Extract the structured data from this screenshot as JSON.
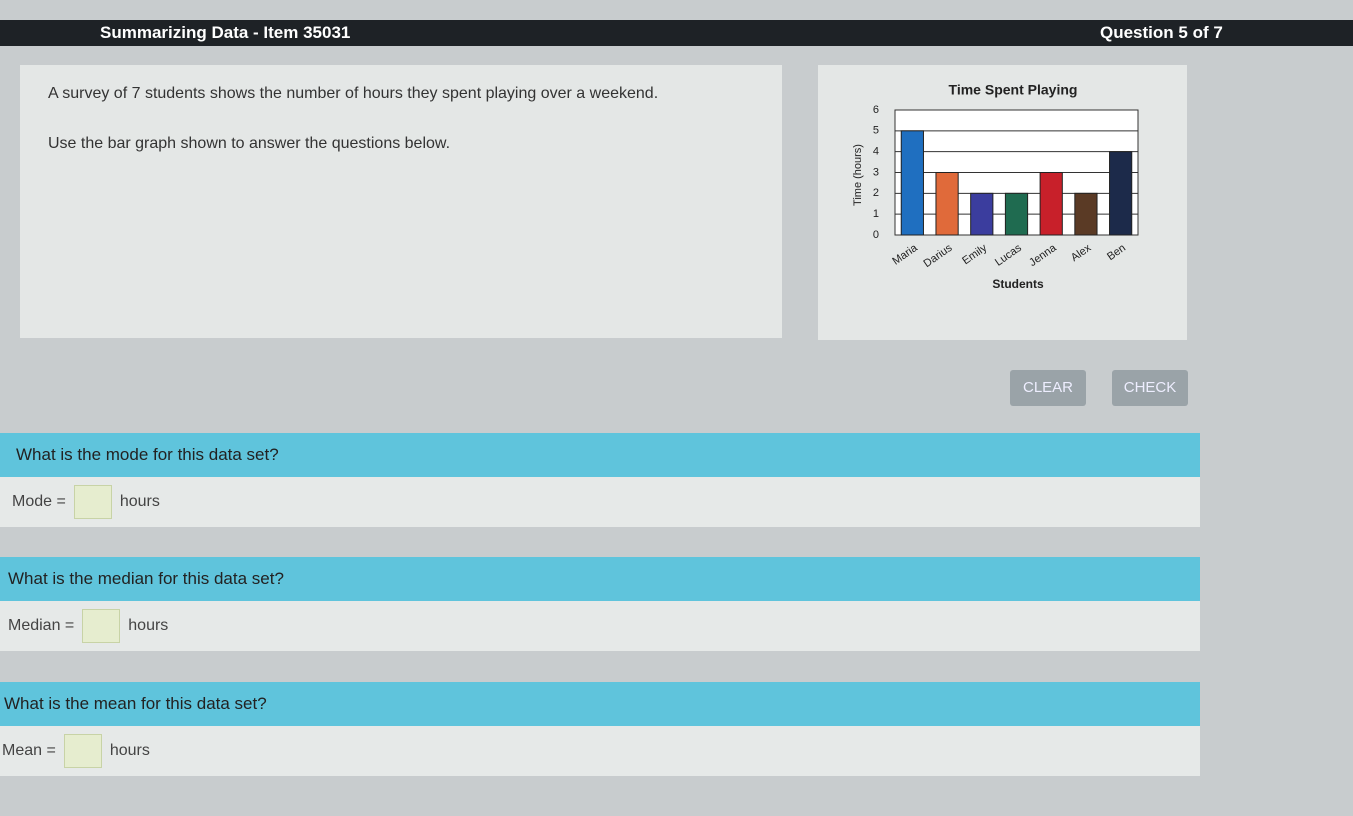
{
  "header": {
    "title": "Summarizing Data - Item 35031",
    "progress": "Question 5 of 7"
  },
  "prompt": {
    "lines": [
      "A survey of 7 students shows the number of hours they spent playing over a weekend.",
      "Use the bar graph shown to answer the questions below."
    ]
  },
  "chart_data": {
    "type": "bar",
    "title": "Time Spent Playing",
    "x_label": "Students",
    "y_label": "Time (hours)",
    "categories": [
      "Maria",
      "Darius",
      "Emily",
      "Lucas",
      "Jenna",
      "Alex",
      "Ben"
    ],
    "values": [
      5,
      3,
      2,
      2,
      3,
      2,
      4
    ],
    "colors": [
      "#1f6fc0",
      "#e06a3a",
      "#3b3d9e",
      "#1f6b50",
      "#c8202a",
      "#5a3a25",
      "#1c2a4a"
    ],
    "ylim": [
      0,
      6
    ],
    "yticks": [
      0,
      1,
      2,
      3,
      4,
      5,
      6
    ],
    "grid": true
  },
  "buttons": [
    "CLEAR",
    "CHECK"
  ],
  "questions": [
    {
      "question": "What is the mode for this data set?",
      "label": "Mode =",
      "unit": "hours"
    },
    {
      "question": "What is the median for this data set?",
      "label": "Median =",
      "unit": "hours"
    },
    {
      "question": "What is the mean for this data set?",
      "label": "Mean =",
      "unit": "hours"
    }
  ]
}
